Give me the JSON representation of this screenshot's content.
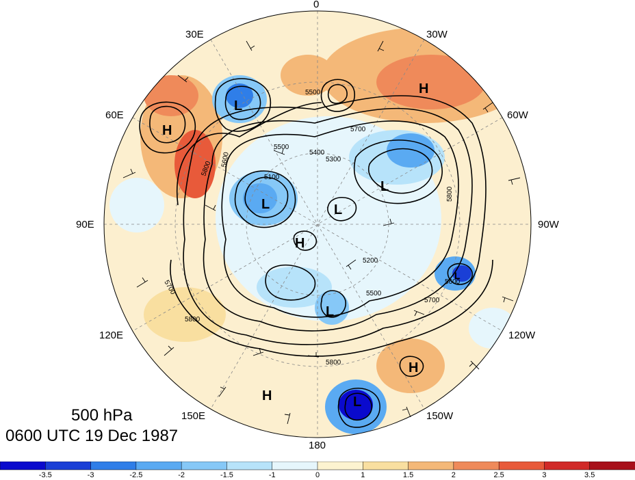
{
  "map": {
    "projection": "north-polar-stereographic",
    "level_label": "500 hPa",
    "time_label": "0600 UTC 19 Dec 1987",
    "longitude_labels": {
      "top": "0",
      "upper_left": "30E",
      "left_upper": "60E",
      "left": "90E",
      "left_lower": "120E",
      "lower_left": "150E",
      "bottom": "180",
      "lower_right": "150W",
      "right_lower": "120W",
      "right": "90W",
      "right_upper": "60W",
      "upper_right": "30W"
    },
    "highs": [
      "H",
      "H",
      "H",
      "H",
      "H"
    ],
    "lows": [
      "L",
      "L",
      "L",
      "L",
      "L",
      "L",
      "L"
    ],
    "contour_labels": [
      "5800",
      "5700",
      "5500",
      "5400",
      "5300",
      "5200",
      "5100",
      "5600",
      "5800",
      "5700",
      "5600",
      "5500",
      "5800",
      "5700",
      "5800",
      "5500"
    ]
  },
  "colorbar": {
    "colors": [
      "#0a0acd",
      "#1a3fd6",
      "#2f7ee8",
      "#5aaaf2",
      "#86c8f7",
      "#b7e3fa",
      "#e6f6fc",
      "#fdf3d0",
      "#f9dfa0",
      "#f4b878",
      "#ef8a5a",
      "#e85a3a",
      "#d12a28",
      "#a8101a"
    ],
    "tick_labels": [
      "-3.5",
      "-3",
      "-2.5",
      "-2",
      "-1.5",
      "-1",
      "0",
      "1",
      "1.5",
      "2",
      "2.5",
      "3",
      "3.5"
    ]
  }
}
